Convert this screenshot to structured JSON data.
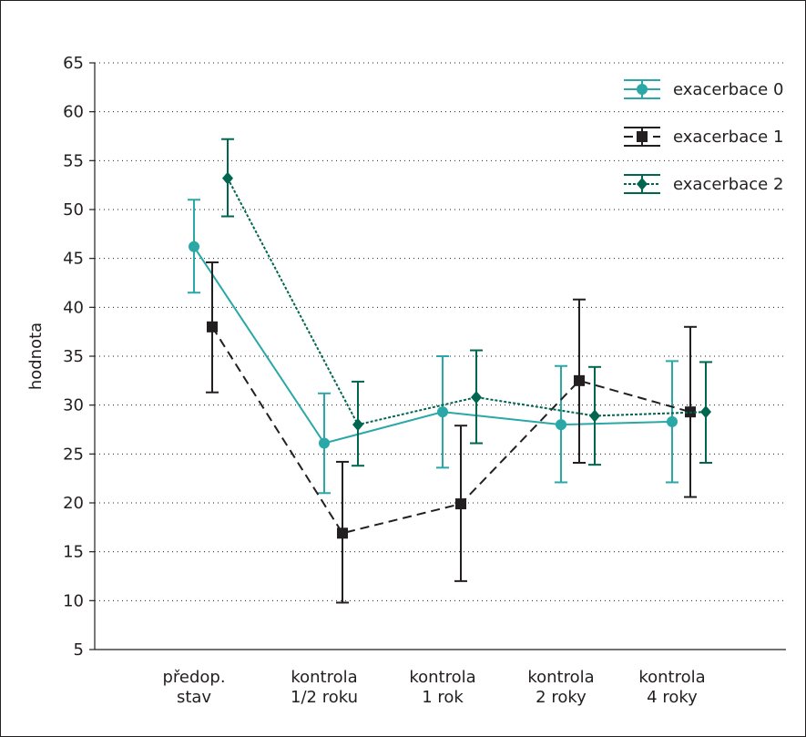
{
  "chart_data": {
    "type": "line",
    "ylabel": "hodnota",
    "ylim": [
      5,
      65
    ],
    "yticks": [
      5,
      10,
      15,
      20,
      25,
      30,
      35,
      40,
      45,
      50,
      55,
      60,
      65
    ],
    "grid": "horizontal dotted",
    "legend_position": "top-right",
    "categories": [
      [
        "předop.",
        "stav"
      ],
      [
        "kontrola",
        "1/2 roku"
      ],
      [
        "kontrola",
        "1 rok"
      ],
      [
        "kontrola",
        "2 roky"
      ],
      [
        "kontrola",
        "4 roky"
      ]
    ],
    "series": [
      {
        "name": "exacerbace 0",
        "color": "#2aa7a7",
        "line_style": "solid",
        "marker": "circle",
        "values": [
          46.2,
          26.1,
          29.3,
          28.0,
          28.3
        ],
        "error_low": [
          41.5,
          21.0,
          23.6,
          22.1,
          22.1
        ],
        "error_high": [
          51.0,
          31.2,
          35.0,
          34.0,
          34.5
        ]
      },
      {
        "name": "exacerbace 1",
        "color": "#231f20",
        "line_style": "dashed",
        "marker": "square",
        "values": [
          38.0,
          16.9,
          19.9,
          32.5,
          29.3
        ],
        "error_low": [
          31.3,
          9.8,
          12.0,
          24.1,
          20.6
        ],
        "error_high": [
          44.6,
          24.2,
          27.9,
          40.8,
          38.0
        ]
      },
      {
        "name": "exacerbace 2",
        "color": "#00664f",
        "line_style": "dotted",
        "marker": "diamond",
        "values": [
          53.2,
          28.0,
          30.8,
          28.9,
          29.3
        ],
        "error_low": [
          49.3,
          23.8,
          26.1,
          23.9,
          24.1
        ],
        "error_high": [
          57.2,
          32.4,
          35.6,
          33.9,
          34.4
        ]
      }
    ]
  }
}
